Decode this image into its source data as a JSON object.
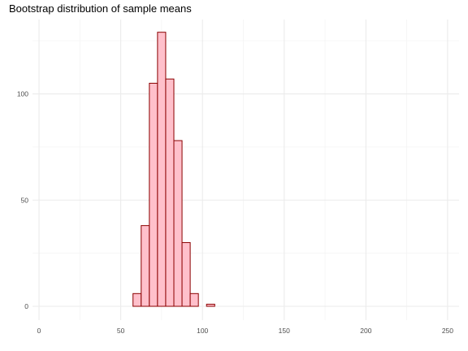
{
  "chart_data": {
    "type": "bar",
    "title": "Bootstrap distribution of sample means",
    "xlabel": "",
    "ylabel": "",
    "xlim": [
      -4,
      257
    ],
    "ylim": [
      -6.5,
      135
    ],
    "x_ticks": [
      0,
      50,
      100,
      150,
      200,
      250
    ],
    "y_ticks": [
      0,
      50,
      100
    ],
    "grid": true,
    "bin_width": 5,
    "bins": [
      {
        "start": 2.5,
        "end": 57.5,
        "count": 0
      },
      {
        "start": 57.5,
        "end": 62.5,
        "count": 6
      },
      {
        "start": 62.5,
        "end": 67.5,
        "count": 38
      },
      {
        "start": 67.5,
        "end": 72.5,
        "count": 105
      },
      {
        "start": 72.5,
        "end": 77.5,
        "count": 129
      },
      {
        "start": 77.5,
        "end": 82.5,
        "count": 107
      },
      {
        "start": 82.5,
        "end": 87.5,
        "count": 78
      },
      {
        "start": 87.5,
        "end": 92.5,
        "count": 30
      },
      {
        "start": 92.5,
        "end": 97.5,
        "count": 6
      },
      {
        "start": 97.5,
        "end": 102.5,
        "count": 0
      },
      {
        "start": 102.5,
        "end": 107.5,
        "count": 1
      },
      {
        "start": 107.5,
        "end": 247.5,
        "count": 0
      }
    ],
    "colors": {
      "bar_fill": "#ffc0cb",
      "bar_stroke": "#8b0000",
      "grid_major": "#ebebeb",
      "grid_minor": "#f4f4f4",
      "tick_text": "#4d4d4d"
    }
  }
}
